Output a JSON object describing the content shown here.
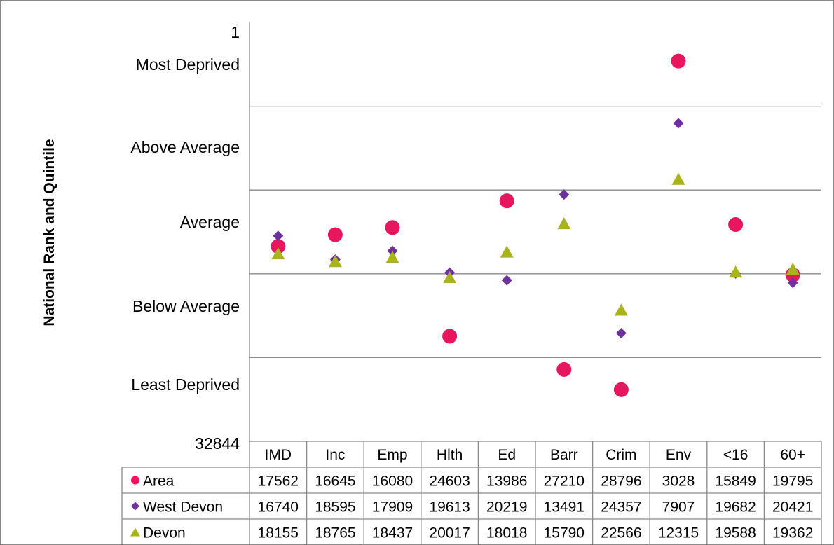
{
  "chart_data": {
    "type": "scatter",
    "title": "",
    "ylabel": "National Rank and Quintile",
    "y_axis": {
      "top_value": "1",
      "bottom_value": "32844",
      "range": [
        1,
        32844
      ],
      "inverted": true,
      "band_labels": [
        "Most Deprived",
        "Above Average",
        "Average",
        "Below Average",
        "Least Deprived"
      ]
    },
    "categories": [
      "IMD",
      "Inc",
      "Emp",
      "Hlth",
      "Ed",
      "Barr",
      "Crim",
      "Env",
      "<16",
      "60+"
    ],
    "series": [
      {
        "name": "Area",
        "marker": "circle",
        "color": "#E8175D",
        "values": [
          17562,
          16645,
          16080,
          24603,
          13986,
          27210,
          28796,
          3028,
          15849,
          19795
        ]
      },
      {
        "name": "West Devon",
        "marker": "diamond",
        "color": "#7030A0",
        "values": [
          16740,
          18595,
          17909,
          19613,
          20219,
          13491,
          24357,
          7907,
          19682,
          20421
        ]
      },
      {
        "name": "Devon",
        "marker": "triangle",
        "color": "#A8B41A",
        "values": [
          18155,
          18765,
          18437,
          20017,
          18018,
          15790,
          22566,
          12315,
          19588,
          19362
        ]
      }
    ],
    "grid": true,
    "legend": "data-table-below"
  }
}
